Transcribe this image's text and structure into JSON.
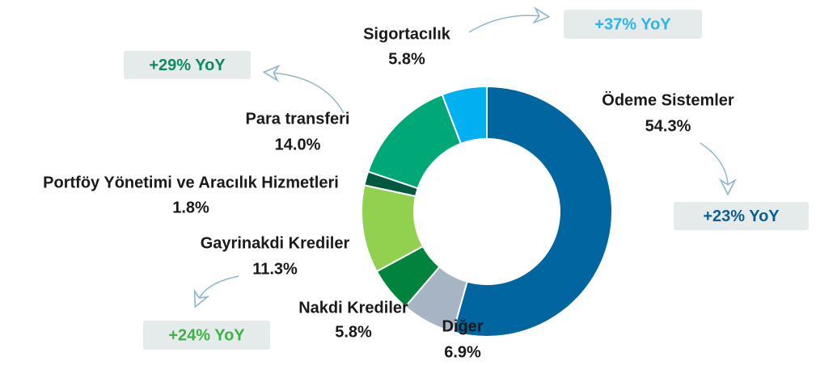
{
  "chart_data": {
    "type": "pie",
    "donut": true,
    "categories": [
      "Ödeme Sistemler",
      "Diğer",
      "Nakdi Krediler",
      "Gayrinakdi Krediler",
      "Portföy Yönetimi ve Aracılık Hizmetleri",
      "Para transferi",
      "Sigortacılık"
    ],
    "values": [
      54.3,
      6.9,
      5.8,
      11.3,
      1.8,
      14.0,
      5.8
    ],
    "value_labels": [
      "54.3%",
      "6.9%",
      "5.8%",
      "11.3%",
      "1.8%",
      "14.0%",
      "5.8%"
    ],
    "colors": [
      "#0166a0",
      "#a7b4c4",
      "#00843d",
      "#92d050",
      "#00593f",
      "#00a878",
      "#00b0f0"
    ],
    "annotations": [
      {
        "text": "+37% YoY",
        "color": "#29b6ef"
      },
      {
        "text": "+29% YoY",
        "color": "#0f8a5f"
      },
      {
        "text": "+23% YoY",
        "color": "#0b5e92"
      },
      {
        "text": "+24% YoY",
        "color": "#3db346"
      }
    ]
  }
}
